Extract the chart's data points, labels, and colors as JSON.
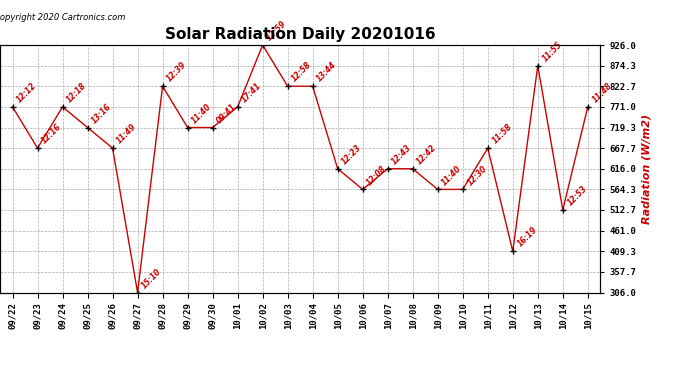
{
  "title": "Solar Radiation Daily 20201016",
  "copyright_text": "Copyright 2020 Cartronics.com",
  "ylabel": "Radiation (W/m2)",
  "dates": [
    "09/22",
    "09/23",
    "09/24",
    "09/25",
    "09/26",
    "09/27",
    "09/28",
    "09/29",
    "09/30",
    "10/01",
    "10/02",
    "10/03",
    "10/04",
    "10/05",
    "10/06",
    "10/07",
    "10/08",
    "10/09",
    "10/10",
    "10/11",
    "10/12",
    "10/13",
    "10/14",
    "10/15"
  ],
  "values": [
    771.0,
    667.7,
    771.0,
    719.3,
    667.7,
    306.0,
    822.7,
    719.3,
    719.3,
    771.0,
    926.0,
    822.7,
    822.7,
    616.0,
    564.3,
    616.0,
    616.0,
    564.3,
    564.3,
    667.7,
    409.3,
    874.3,
    512.7,
    771.0
  ],
  "time_labels": [
    "12:12",
    "12:16",
    "12:18",
    "13:16",
    "11:49",
    "15:10",
    "12:39",
    "11:40",
    "09:41",
    "17:41",
    "12:59",
    "12:58",
    "13:44",
    "12:23",
    "12:08",
    "12:43",
    "12:42",
    "11:40",
    "12:30",
    "11:58",
    "16:19",
    "11:55",
    "12:53",
    "11:48"
  ],
  "ylim_min": 306.0,
  "ylim_max": 926.0,
  "yticks": [
    306.0,
    357.7,
    409.3,
    461.0,
    512.7,
    564.3,
    616.0,
    667.7,
    719.3,
    771.0,
    822.7,
    874.3,
    926.0
  ],
  "line_color": "#cc0000",
  "marker_color": "#000000",
  "label_color": "#cc0000",
  "title_fontsize": 11,
  "background_color": "#ffffff",
  "grid_color": "#aaaaaa"
}
